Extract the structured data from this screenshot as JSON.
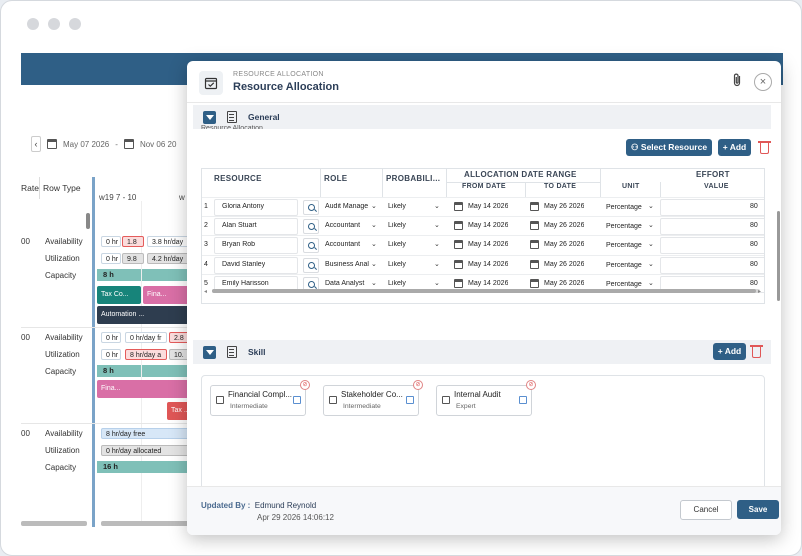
{
  "background": {
    "date_from": "May 07 2026",
    "date_to": "Nov 06 20",
    "col_rate": "Rate",
    "col_rowtype": "Row Type",
    "week_label": "w19 7 - 10",
    "week_label2": "w",
    "groups": [
      {
        "rate": "00",
        "rows": [
          "Availability",
          "Utilization",
          "Capacity"
        ],
        "avail_pills": [
          "0 hr",
          "1.8",
          "3.8 hr/day"
        ],
        "util_pills": [
          "0 hr",
          "9.8",
          "4.2 hr/day"
        ],
        "capacity": "8 h",
        "tasks": [
          "Tax Co...",
          "Fina...",
          "Automation ..."
        ]
      },
      {
        "rate": "00",
        "rows": [
          "Availability",
          "Utilization",
          "Capacity"
        ],
        "avail_pills": [
          "0 hr",
          "0 hr/day fr",
          "2.8"
        ],
        "util_pills": [
          "0 hr",
          "8 hr/day a",
          "10."
        ],
        "capacity": "8 h",
        "tasks": [
          "Fina...",
          "Tax ..."
        ]
      },
      {
        "rate": "00",
        "rows": [
          "Availability",
          "Utilization",
          "Capacity"
        ],
        "avail_pills": [
          "8 hr/day free"
        ],
        "util_pills": [
          "0 hr/day allocated"
        ],
        "capacity": "16 h"
      }
    ]
  },
  "modal": {
    "subtitle": "RESOURCE ALLOCATION",
    "title": "Resource Allocation",
    "close": "×",
    "general_title": "General",
    "cutoff_text": "Resource Allocation",
    "select_resource": "Select Resource",
    "add": "+ Add",
    "headers": {
      "resource": "RESOURCE",
      "role": "ROLE",
      "probability": "PROBABILI...",
      "alloc_range": "ALLOCATION DATE RANGE",
      "from_date": "FROM DATE",
      "to_date": "TO DATE",
      "unit": "UNIT",
      "effort": "EFFORT",
      "value": "VALUE"
    },
    "rows": [
      {
        "n": "1",
        "name": "Gloria Antony",
        "role": "Audit Manage",
        "prob": "Likely",
        "from": "May 14 2026",
        "to": "May 26 2026",
        "unit": "Percentage",
        "value": "80"
      },
      {
        "n": "2",
        "name": "Alan Stuart",
        "role": "Accountant",
        "prob": "Likely",
        "from": "May 14 2026",
        "to": "May 26 2026",
        "unit": "Percentage",
        "value": "80"
      },
      {
        "n": "3",
        "name": "Bryan Rob",
        "role": "Accountant",
        "prob": "Likely",
        "from": "May 14 2026",
        "to": "May 26 2026",
        "unit": "Percentage",
        "value": "80"
      },
      {
        "n": "4",
        "name": "David Stanley",
        "role": "Business Anal",
        "prob": "Likely",
        "from": "May 14 2026",
        "to": "May 26 2026",
        "unit": "Percentage",
        "value": "80"
      },
      {
        "n": "5",
        "name": "Emily Harisson",
        "role": "Data Analyst",
        "prob": "Likely",
        "from": "May 14 2026",
        "to": "May 26 2026",
        "unit": "Percentage",
        "value": "80"
      }
    ],
    "skill_title": "Skill",
    "skill_add": "+ Add",
    "skills": [
      {
        "name": "Financial Compl...",
        "level": "Intermediate"
      },
      {
        "name": "Stakeholder Co...",
        "level": "Intermediate"
      },
      {
        "name": "Internal Audit",
        "level": "Expert"
      }
    ],
    "updated_by_label": "Updated By :",
    "updated_by": "Edmund Reynold",
    "updated_at": "Apr 29 2026 14:06:12",
    "cancel": "Cancel",
    "save": "Save"
  },
  "colors": {
    "primary": "#2f5f86",
    "danger": "#e05757"
  }
}
